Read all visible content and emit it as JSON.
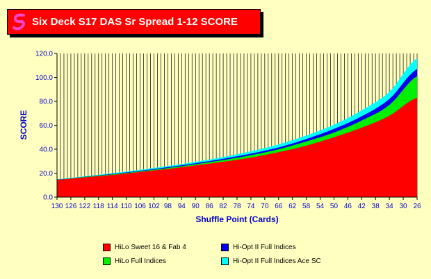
{
  "title": "Six Deck S17 DAS Sr Spread 1-12 SCORE",
  "chart_data": {
    "type": "area",
    "stacked": true,
    "xlabel": "Shuffle Point (Cards)",
    "ylabel": "SCORE",
    "ylim": [
      0,
      120
    ],
    "yticks": [
      "0.0",
      "20.0",
      "40.0",
      "60.0",
      "80.0",
      "100.0",
      "120.0"
    ],
    "xlim": [
      130,
      26
    ],
    "xticks": [
      "130",
      "126",
      "122",
      "118",
      "114",
      "110",
      "106",
      "102",
      "98",
      "94",
      "90",
      "86",
      "82",
      "78",
      "74",
      "70",
      "66",
      "62",
      "58",
      "54",
      "50",
      "46",
      "42",
      "38",
      "34",
      "30",
      "26"
    ],
    "grid": "vertical",
    "x": [
      130,
      122,
      114,
      106,
      98,
      90,
      82,
      74,
      66,
      58,
      50,
      42,
      34,
      26
    ],
    "series": [
      {
        "name": "HiLo Sweet 16 & Fab 4",
        "color": "#ff0000",
        "values": [
          14.5,
          16.5,
          18.5,
          21.0,
          23.5,
          26.5,
          29.5,
          33.0,
          37.5,
          43.0,
          50.0,
          58.0,
          68.0,
          83.0
        ]
      },
      {
        "name": "HiLo Full Indices",
        "color": "#00ee00",
        "values": [
          14.5,
          16.8,
          19.0,
          21.5,
          24.3,
          27.5,
          31.0,
          35.0,
          40.0,
          46.5,
          54.0,
          64.0,
          77.0,
          101.0
        ]
      },
      {
        "name": "Hi-Opt II Full Indices",
        "color": "#0000ee",
        "values": [
          14.7,
          17.0,
          19.4,
          22.0,
          25.0,
          28.3,
          32.0,
          36.3,
          41.5,
          48.5,
          57.0,
          67.5,
          82.0,
          107.0
        ]
      },
      {
        "name": "Hi-Opt II Full Indices Ace SC",
        "color": "#00ffff",
        "values": [
          15.0,
          17.4,
          20.0,
          22.8,
          26.0,
          29.5,
          33.5,
          38.3,
          44.0,
          51.5,
          60.5,
          72.5,
          88.0,
          116.0
        ]
      }
    ],
    "legend_position": "bottom"
  }
}
